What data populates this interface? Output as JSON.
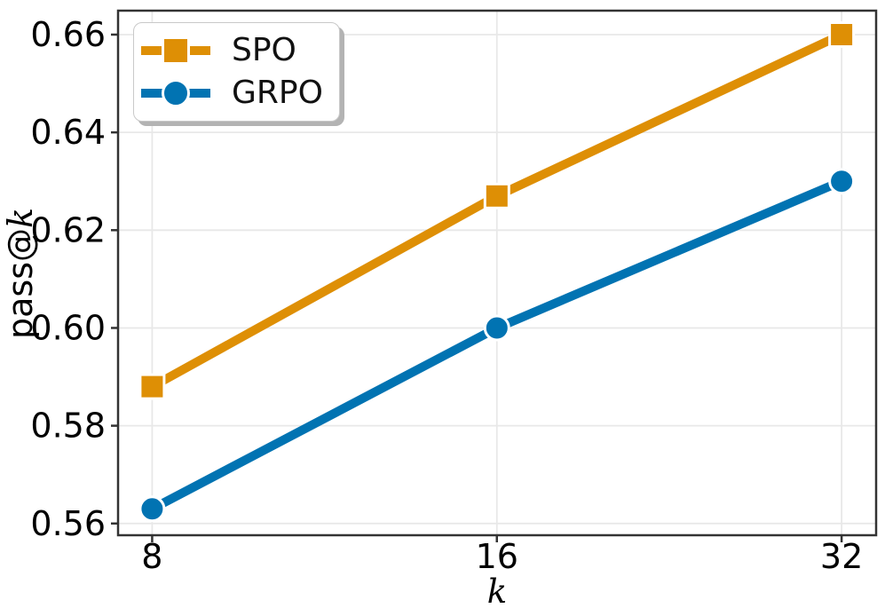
{
  "chart_data": {
    "type": "line",
    "title": "",
    "xlabel": "k",
    "ylabel": "pass@k",
    "ylabel_prefix": "pass@",
    "x_scale": "log2",
    "x": [
      8,
      16,
      32
    ],
    "xtick_labels": [
      "8",
      "16",
      "32"
    ],
    "ytick_values": [
      0.56,
      0.58,
      0.6,
      0.62,
      0.64,
      0.66
    ],
    "ytick_labels": [
      "0.56",
      "0.58",
      "0.60",
      "0.62",
      "0.64",
      "0.66"
    ],
    "xlim": [
      7.47,
      34.3
    ],
    "ylim": [
      0.5576,
      0.6649
    ],
    "grid": true,
    "legend_position": "upper-left",
    "series": [
      {
        "name": "SPO",
        "color": "#DE8F05",
        "marker": "square",
        "values": [
          0.588,
          0.627,
          0.66
        ]
      },
      {
        "name": "GRPO",
        "color": "#0173B2",
        "marker": "circle",
        "values": [
          0.563,
          0.6,
          0.63
        ]
      }
    ],
    "colors": {
      "background": "#FFFFFF",
      "grid": "#E8E8E8",
      "spine": "#333333",
      "tick_label": "#000000",
      "legend_border": "#C9C9C9",
      "legend_shadow": "#B3B3B3"
    }
  }
}
